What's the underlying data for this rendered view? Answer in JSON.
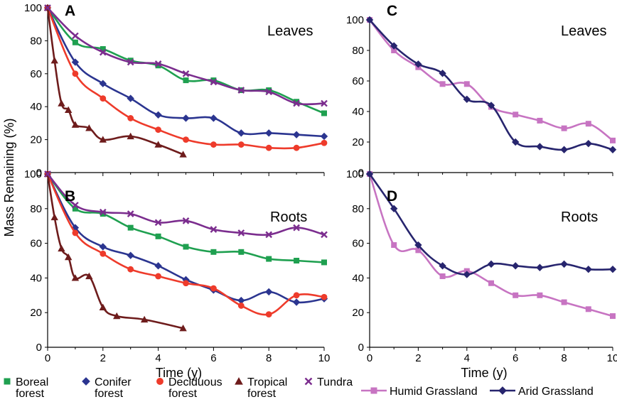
{
  "chart_data": [
    {
      "type": "line",
      "panel": "A",
      "annotation": "Leaves",
      "ylabel": "Mass Remaining (%)",
      "xlabel": "",
      "xlim": [
        0,
        10
      ],
      "ylim": [
        0,
        100
      ],
      "xticks": [
        "0",
        "2",
        "4",
        "6",
        "8",
        "10"
      ],
      "yticks": [
        "0",
        "20",
        "40",
        "60",
        "80",
        "100"
      ],
      "series": [
        {
          "key": "boreal",
          "color": "#1fa050",
          "marker": "square",
          "x": [
            0,
            1,
            2,
            3,
            4,
            5,
            6,
            7,
            8,
            9,
            10
          ],
          "y": [
            100,
            79,
            75,
            68,
            65,
            56,
            56,
            50,
            50,
            43,
            36
          ]
        },
        {
          "key": "conifer",
          "color": "#2b3590",
          "marker": "diamond",
          "x": [
            0,
            1,
            2,
            3,
            4,
            5,
            6,
            7,
            8,
            9,
            10
          ],
          "y": [
            100,
            67,
            54,
            45,
            35,
            33,
            33,
            24,
            24,
            23,
            22
          ]
        },
        {
          "key": "deciduous",
          "color": "#ee3b2b",
          "marker": "circle",
          "x": [
            0,
            1,
            2,
            3,
            4,
            5,
            6,
            7,
            8,
            9,
            10
          ],
          "y": [
            100,
            60,
            45,
            33,
            26,
            20,
            17,
            17,
            15,
            15,
            18
          ]
        },
        {
          "key": "tropical",
          "color": "#6e1c1c",
          "marker": "triangle",
          "x": [
            0,
            0.25,
            0.5,
            0.75,
            1,
            1.5,
            2,
            3,
            4,
            4.9
          ],
          "y": [
            100,
            68,
            42,
            38,
            29,
            27,
            20,
            22,
            17,
            11
          ]
        },
        {
          "key": "tundra",
          "color": "#7b2d8e",
          "marker": "x",
          "x": [
            0,
            1,
            2,
            3,
            4,
            5,
            6,
            7,
            8,
            9,
            10
          ],
          "y": [
            100,
            83,
            73,
            67,
            66,
            60,
            55,
            50,
            49,
            42,
            42
          ]
        }
      ]
    },
    {
      "type": "line",
      "panel": "B",
      "annotation": "Roots",
      "ylabel": "Mass Remaining (%)",
      "xlabel": "Time (y)",
      "xlim": [
        0,
        10
      ],
      "ylim": [
        0,
        100
      ],
      "xticks": [
        "0",
        "2",
        "4",
        "6",
        "8",
        "10"
      ],
      "yticks": [
        "0",
        "20",
        "40",
        "60",
        "80",
        "100"
      ],
      "series": [
        {
          "key": "boreal",
          "color": "#1fa050",
          "marker": "square",
          "x": [
            0,
            1,
            2,
            3,
            4,
            5,
            6,
            7,
            8,
            9,
            10
          ],
          "y": [
            100,
            80,
            77,
            69,
            64,
            58,
            55,
            55,
            51,
            50,
            49
          ]
        },
        {
          "key": "conifer",
          "color": "#2b3590",
          "marker": "diamond",
          "x": [
            0,
            1,
            2,
            3,
            4,
            5,
            6,
            7,
            8,
            9,
            10
          ],
          "y": [
            100,
            69,
            58,
            53,
            47,
            39,
            33,
            27,
            32,
            26,
            28
          ]
        },
        {
          "key": "deciduous",
          "color": "#ee3b2b",
          "marker": "circle",
          "x": [
            0,
            1,
            2,
            3,
            4,
            5,
            6,
            7,
            8,
            9,
            10
          ],
          "y": [
            100,
            66,
            54,
            45,
            41,
            37,
            34,
            24,
            19,
            30,
            29
          ]
        },
        {
          "key": "tropical",
          "color": "#6e1c1c",
          "marker": "triangle",
          "x": [
            0,
            0.25,
            0.5,
            0.75,
            1,
            1.5,
            2,
            2.5,
            3.5,
            4.9
          ],
          "y": [
            100,
            75,
            57,
            52,
            40,
            41,
            23,
            18,
            16,
            11
          ]
        },
        {
          "key": "tundra",
          "color": "#7b2d8e",
          "marker": "x",
          "x": [
            0,
            1,
            2,
            3,
            4,
            5,
            6,
            7,
            8,
            9,
            10
          ],
          "y": [
            100,
            82,
            78,
            77,
            72,
            73,
            68,
            66,
            65,
            69,
            65
          ]
        }
      ]
    },
    {
      "type": "line",
      "panel": "C",
      "annotation": "Leaves",
      "ylabel": "",
      "xlabel": "",
      "xlim": [
        0,
        10
      ],
      "ylim": [
        0,
        100
      ],
      "xticks": [
        "0",
        "2",
        "4",
        "6",
        "8",
        "10"
      ],
      "yticks": [
        "0",
        "20",
        "40",
        "60",
        "80",
        "100"
      ],
      "series": [
        {
          "key": "humid",
          "color": "#c774c2",
          "marker": "square",
          "x": [
            0,
            1,
            2,
            3,
            4,
            5,
            6,
            7,
            8,
            9,
            10
          ],
          "y": [
            100,
            80,
            69,
            58,
            58,
            43,
            38,
            34,
            29,
            32,
            21
          ]
        },
        {
          "key": "arid",
          "color": "#27256e",
          "marker": "diamond",
          "x": [
            0,
            1,
            2,
            3,
            4,
            5,
            6,
            7,
            8,
            9,
            10
          ],
          "y": [
            100,
            83,
            71,
            65,
            48,
            44,
            20,
            17,
            15,
            19,
            15
          ]
        }
      ]
    },
    {
      "type": "line",
      "panel": "D",
      "annotation": "Roots",
      "ylabel": "",
      "xlabel": "Time (y)",
      "xlim": [
        0,
        10
      ],
      "ylim": [
        0,
        100
      ],
      "xticks": [
        "0",
        "2",
        "4",
        "6",
        "8",
        "10"
      ],
      "yticks": [
        "0",
        "20",
        "40",
        "60",
        "80",
        "100"
      ],
      "series": [
        {
          "key": "humid",
          "color": "#c774c2",
          "marker": "square",
          "x": [
            0,
            1,
            2,
            3,
            4,
            5,
            6,
            7,
            8,
            9,
            10
          ],
          "y": [
            100,
            59,
            56,
            41,
            44,
            37,
            30,
            30,
            26,
            22,
            18
          ]
        },
        {
          "key": "arid",
          "color": "#27256e",
          "marker": "diamond",
          "x": [
            0,
            1,
            2,
            3,
            4,
            5,
            6,
            7,
            8,
            9,
            10
          ],
          "y": [
            100,
            80,
            59,
            47,
            42,
            48,
            47,
            46,
            48,
            45,
            45
          ]
        }
      ]
    }
  ],
  "legend_left": [
    {
      "key": "boreal",
      "color": "#1fa050",
      "marker": "square",
      "lines": [
        "Boreal",
        "forest"
      ]
    },
    {
      "key": "conifer",
      "color": "#2b3590",
      "marker": "diamond",
      "lines": [
        "Conifer",
        "forest"
      ]
    },
    {
      "key": "deciduous",
      "color": "#ee3b2b",
      "marker": "circle",
      "lines": [
        "Deciduous",
        "forest"
      ]
    },
    {
      "key": "tropical",
      "color": "#6e1c1c",
      "marker": "triangle",
      "lines": [
        "Tropical",
        "forest"
      ]
    },
    {
      "key": "tundra",
      "color": "#7b2d8e",
      "marker": "x",
      "lines": [
        "Tundra"
      ]
    }
  ],
  "legend_right": [
    {
      "key": "humid",
      "color": "#c774c2",
      "marker": "square",
      "lines": [
        "Humid Grassland"
      ]
    },
    {
      "key": "arid",
      "color": "#27256e",
      "marker": "diamond",
      "lines": [
        "Arid Grassland"
      ]
    }
  ]
}
